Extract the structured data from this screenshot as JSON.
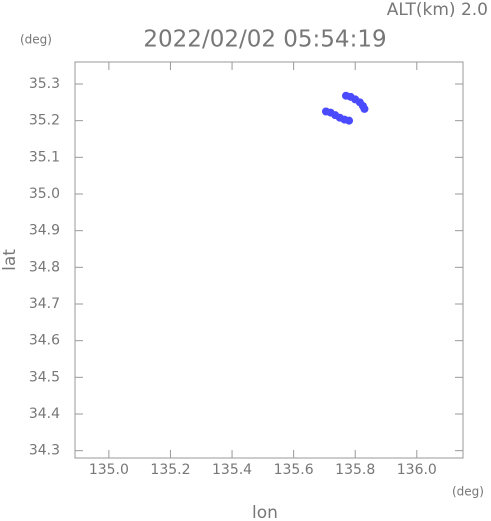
{
  "chart_data": {
    "type": "scatter",
    "title": "2022/02/02 05:54:19",
    "annotation": "ALT(km) 2.0",
    "y_unit": "(deg)",
    "x_unit": "(deg)",
    "x_label": "lon",
    "y_label": "lat",
    "xlim": [
      134.89,
      136.15
    ],
    "ylim": [
      34.28,
      35.36
    ],
    "xticks": [
      {
        "value": 135,
        "label": "135.0"
      },
      135.2,
      135.4,
      135.6,
      135.8,
      {
        "value": 136,
        "label": "136.0"
      }
    ],
    "yticks": [
      34.3,
      34.4,
      34.5,
      34.6,
      34.7,
      34.8,
      34.9,
      {
        "value": 35,
        "label": "35.0"
      },
      35.1,
      35.2,
      35.3
    ],
    "series": [
      {
        "color": "#4a4aff",
        "x": [
          135.705,
          135.72,
          135.735,
          135.75,
          135.765,
          135.78,
          135.77,
          135.785,
          135.8,
          135.815,
          135.825,
          135.83
        ],
        "values": [
          35.225,
          35.222,
          35.215,
          35.208,
          35.203,
          35.2,
          35.268,
          35.265,
          35.258,
          35.25,
          35.24,
          35.232
        ]
      }
    ]
  }
}
